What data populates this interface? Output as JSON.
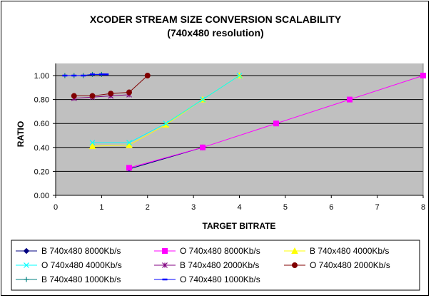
{
  "chart_data": {
    "type": "line",
    "title": "XCODER  STREAM SIZE CONVERSION SCALABILITY",
    "subtitle": "(740x480 resolution)",
    "xlabel": "TARGET BITRATE",
    "ylabel": "RATIO",
    "xlim": [
      0,
      8
    ],
    "ylim": [
      0,
      1.1
    ],
    "x_ticks": [
      "0",
      "1",
      "2",
      "3",
      "4",
      "5",
      "6",
      "7",
      "8"
    ],
    "y_ticks": [
      "0.00",
      "0.20",
      "0.40",
      "0.60",
      "0.80",
      "1.00"
    ],
    "grid": "horizontal",
    "legend_position": "bottom",
    "plot_background": "#c0c0c0",
    "series": [
      {
        "name": "B  740x480 8000Kb/s",
        "color": "#000080",
        "marker": "diamond",
        "x": [
          1.6,
          3.2
        ],
        "y": [
          0.22,
          0.4
        ]
      },
      {
        "name": "O  740x480 8000Kb/s",
        "color": "#ff00ff",
        "marker": "square",
        "x": [
          1.6,
          3.2,
          4.8,
          6.4,
          8.0
        ],
        "y": [
          0.23,
          0.4,
          0.6,
          0.8,
          1.0
        ]
      },
      {
        "name": "B  740x480 4000Kb/s",
        "color": "#ffff00",
        "marker": "triangle",
        "x": [
          0.8,
          1.6,
          2.4,
          3.2,
          4.0
        ],
        "y": [
          0.41,
          0.42,
          0.59,
          0.8,
          1.0
        ]
      },
      {
        "name": "O  740x480 4000Kb/s",
        "color": "#00ffff",
        "marker": "x",
        "x": [
          0.8,
          1.6,
          2.4,
          3.2,
          4.0
        ],
        "y": [
          0.44,
          0.44,
          0.6,
          0.8,
          1.0
        ]
      },
      {
        "name": "B  740x480 2000Kb/s",
        "color": "#800080",
        "marker": "star",
        "x": [
          0.4,
          0.8,
          1.2,
          1.6
        ],
        "y": [
          0.81,
          0.82,
          0.83,
          0.84
        ]
      },
      {
        "name": "O  740x480 2000Kb/s",
        "color": "#800000",
        "marker": "circle",
        "x": [
          0.4,
          0.8,
          1.2,
          1.6,
          2.0
        ],
        "y": [
          0.83,
          0.83,
          0.85,
          0.86,
          1.0
        ]
      },
      {
        "name": "B  740x480 1000Kb/s",
        "color": "#008080",
        "marker": "plus",
        "x": [
          0.2,
          0.4,
          0.6,
          0.8,
          1.0
        ],
        "y": [
          1.0,
          1.0,
          1.0,
          1.01,
          1.01
        ]
      },
      {
        "name": "O  740x480 1000Kb/s",
        "color": "#0000ff",
        "marker": "dash",
        "x": [
          0.2,
          0.4,
          0.6,
          0.8,
          1.0,
          1.1
        ],
        "y": [
          1.0,
          1.0,
          1.0,
          1.01,
          1.01,
          1.01
        ]
      }
    ]
  }
}
